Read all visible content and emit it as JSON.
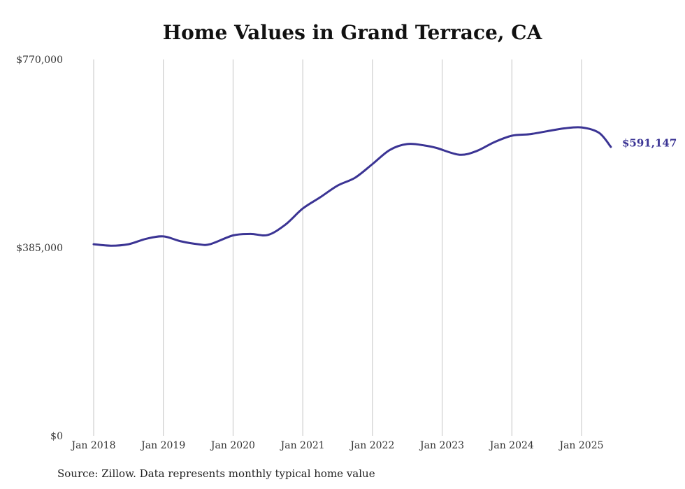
{
  "chart_data": {
    "type": "line",
    "title": "Home Values in Grand Terrace, CA",
    "xlabel": "",
    "ylabel": "",
    "ylim": [
      0,
      770000
    ],
    "y_ticks": [
      {
        "value": 0,
        "label": "$0"
      },
      {
        "value": 385000,
        "label": "$385,000"
      },
      {
        "value": 770000,
        "label": "$770,000"
      }
    ],
    "x_ticks": [
      {
        "value": 2018.0,
        "label": "Jan 2018"
      },
      {
        "value": 2019.0,
        "label": "Jan 2019"
      },
      {
        "value": 2020.0,
        "label": "Jan 2020"
      },
      {
        "value": 2021.0,
        "label": "Jan 2021"
      },
      {
        "value": 2022.0,
        "label": "Jan 2022"
      },
      {
        "value": 2023.0,
        "label": "Jan 2023"
      },
      {
        "value": 2024.0,
        "label": "Jan 2024"
      },
      {
        "value": 2025.0,
        "label": "Jan 2025"
      }
    ],
    "grid": {
      "vertical": true,
      "horizontal": false
    },
    "line_color": "#3b3494",
    "end_label": "$591,147",
    "series": [
      {
        "values": [
          {
            "x": 2018.0,
            "y": 392000
          },
          {
            "x": 2018.25,
            "y": 389000
          },
          {
            "x": 2018.5,
            "y": 392000
          },
          {
            "x": 2018.75,
            "y": 403000
          },
          {
            "x": 2019.0,
            "y": 408000
          },
          {
            "x": 2019.25,
            "y": 398000
          },
          {
            "x": 2019.5,
            "y": 392000
          },
          {
            "x": 2019.67,
            "y": 392000
          },
          {
            "x": 2020.0,
            "y": 410000
          },
          {
            "x": 2020.25,
            "y": 413000
          },
          {
            "x": 2020.5,
            "y": 411000
          },
          {
            "x": 2020.75,
            "y": 432000
          },
          {
            "x": 2021.0,
            "y": 465000
          },
          {
            "x": 2021.25,
            "y": 488000
          },
          {
            "x": 2021.5,
            "y": 512000
          },
          {
            "x": 2021.75,
            "y": 528000
          },
          {
            "x": 2022.0,
            "y": 556000
          },
          {
            "x": 2022.25,
            "y": 585000
          },
          {
            "x": 2022.5,
            "y": 597000
          },
          {
            "x": 2022.75,
            "y": 594000
          },
          {
            "x": 2022.92,
            "y": 589000
          },
          {
            "x": 2023.25,
            "y": 575000
          },
          {
            "x": 2023.5,
            "y": 583000
          },
          {
            "x": 2023.75,
            "y": 601000
          },
          {
            "x": 2024.0,
            "y": 614000
          },
          {
            "x": 2024.25,
            "y": 617000
          },
          {
            "x": 2024.5,
            "y": 623000
          },
          {
            "x": 2024.75,
            "y": 629000
          },
          {
            "x": 2025.0,
            "y": 631000
          },
          {
            "x": 2025.25,
            "y": 620000
          },
          {
            "x": 2025.42,
            "y": 591147
          }
        ]
      }
    ]
  },
  "footer": {
    "source": "Source: Zillow. Data represents monthly typical home value"
  }
}
